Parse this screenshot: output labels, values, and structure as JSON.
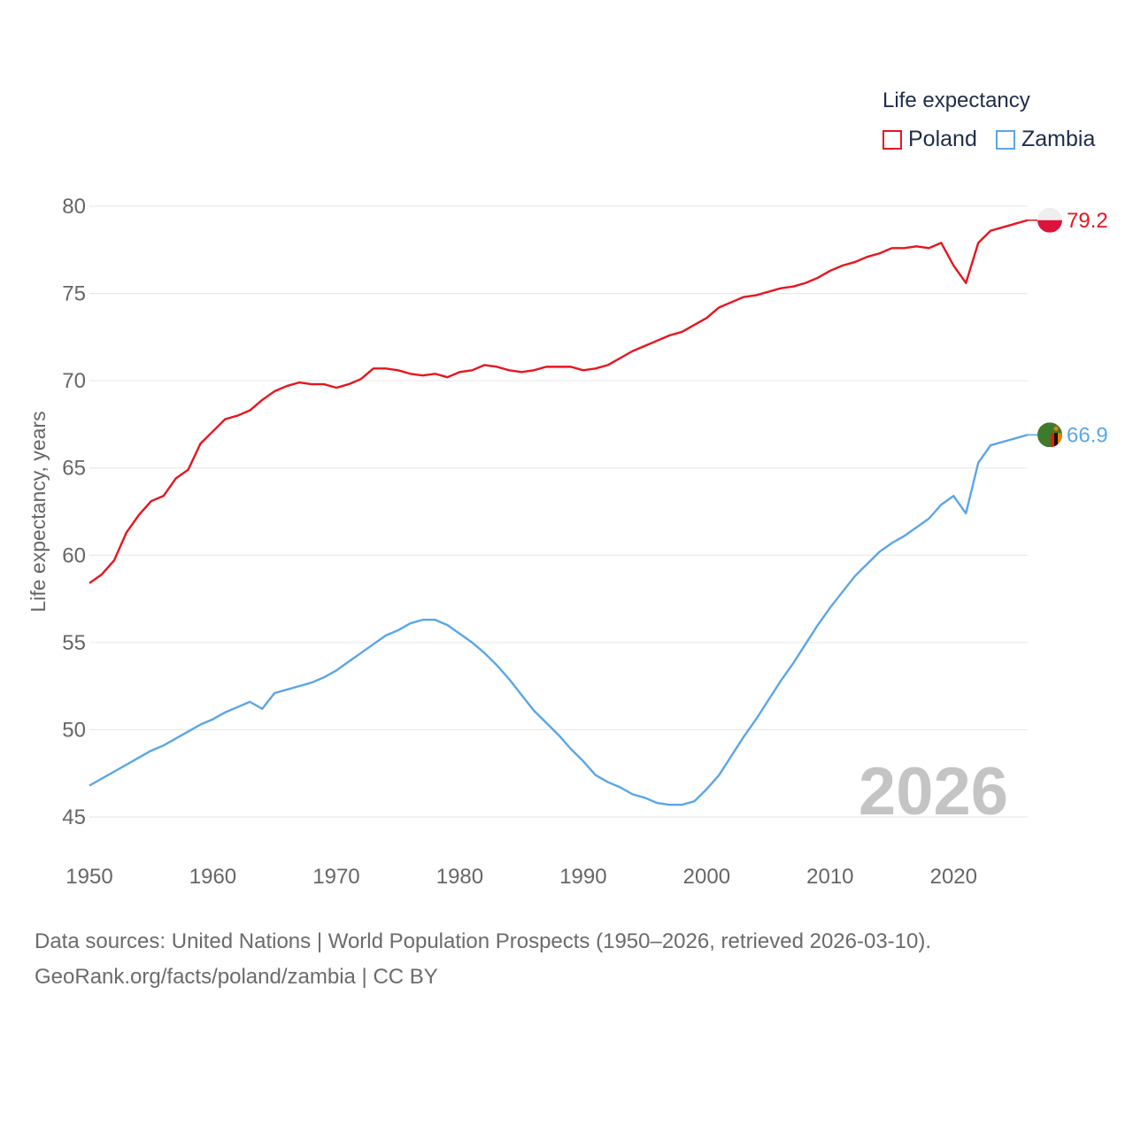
{
  "legend": {
    "title": "Life expectancy",
    "items": [
      {
        "label": "Poland",
        "color": "#e8141e"
      },
      {
        "label": "Zambia",
        "color": "#5aa6e6"
      }
    ]
  },
  "year_watermark": "2026",
  "source": {
    "line1": "Data sources: United Nations | World Population Prospects (1950–2026, retrieved 2026-03-10).",
    "line2": "GeoRank.org/facts/poland/zambia | CC BY"
  },
  "chart_data": {
    "type": "line",
    "title": "Life expectancy",
    "xlabel": "",
    "ylabel": "Life expectancy, years",
    "xlim": [
      1950,
      2026
    ],
    "ylim": [
      45,
      80
    ],
    "x_ticks": [
      "1950",
      "1960",
      "1970",
      "1980",
      "1990",
      "2000",
      "2010",
      "2020"
    ],
    "y_ticks": [
      "45",
      "50",
      "55",
      "60",
      "65",
      "70",
      "75",
      "80"
    ],
    "x": [
      1950,
      1951,
      1952,
      1953,
      1954,
      1955,
      1956,
      1957,
      1958,
      1959,
      1960,
      1961,
      1962,
      1963,
      1964,
      1965,
      1966,
      1967,
      1968,
      1969,
      1970,
      1971,
      1972,
      1973,
      1974,
      1975,
      1976,
      1977,
      1978,
      1979,
      1980,
      1981,
      1982,
      1983,
      1984,
      1985,
      1986,
      1987,
      1988,
      1989,
      1990,
      1991,
      1992,
      1993,
      1994,
      1995,
      1996,
      1997,
      1998,
      1999,
      2000,
      2001,
      2002,
      2003,
      2004,
      2005,
      2006,
      2007,
      2008,
      2009,
      2010,
      2011,
      2012,
      2013,
      2014,
      2015,
      2016,
      2017,
      2018,
      2019,
      2020,
      2021,
      2022,
      2023,
      2024,
      2025,
      2026
    ],
    "series": [
      {
        "name": "Poland",
        "color": "#e8141e",
        "end_label": "79.2",
        "values": [
          58.4,
          58.9,
          59.7,
          61.3,
          62.3,
          63.1,
          63.4,
          64.4,
          64.9,
          66.4,
          67.1,
          67.8,
          68.0,
          68.3,
          68.9,
          69.4,
          69.7,
          69.9,
          69.8,
          69.8,
          69.6,
          69.8,
          70.1,
          70.7,
          70.7,
          70.6,
          70.4,
          70.3,
          70.4,
          70.2,
          70.5,
          70.6,
          70.9,
          70.8,
          70.6,
          70.5,
          70.6,
          70.8,
          70.8,
          70.8,
          70.6,
          70.7,
          70.9,
          71.3,
          71.7,
          72.0,
          72.3,
          72.6,
          72.8,
          73.2,
          73.6,
          74.2,
          74.5,
          74.8,
          74.9,
          75.1,
          75.3,
          75.4,
          75.6,
          75.9,
          76.3,
          76.6,
          76.8,
          77.1,
          77.3,
          77.6,
          77.6,
          77.7,
          77.6,
          77.9,
          76.6,
          75.6,
          77.9,
          78.6,
          78.8,
          79.0,
          79.2
        ]
      },
      {
        "name": "Zambia",
        "color": "#5aa6e6",
        "end_label": "66.9",
        "values": [
          46.8,
          47.2,
          47.6,
          48.0,
          48.4,
          48.8,
          49.1,
          49.5,
          49.9,
          50.3,
          50.6,
          51.0,
          51.3,
          51.6,
          51.2,
          52.1,
          52.3,
          52.5,
          52.7,
          53.0,
          53.4,
          53.9,
          54.4,
          54.9,
          55.4,
          55.7,
          56.1,
          56.3,
          56.3,
          56.0,
          55.5,
          55.0,
          54.4,
          53.7,
          52.9,
          52.0,
          51.1,
          50.4,
          49.7,
          48.9,
          48.2,
          47.4,
          47.0,
          46.7,
          46.3,
          46.1,
          45.8,
          45.7,
          45.7,
          45.9,
          46.6,
          47.4,
          48.5,
          49.6,
          50.6,
          51.7,
          52.8,
          53.8,
          54.9,
          56.0,
          57.0,
          57.9,
          58.8,
          59.5,
          60.2,
          60.7,
          61.1,
          61.6,
          62.1,
          62.9,
          63.4,
          62.4,
          65.3,
          66.3,
          66.5,
          66.7,
          66.9
        ]
      }
    ]
  }
}
